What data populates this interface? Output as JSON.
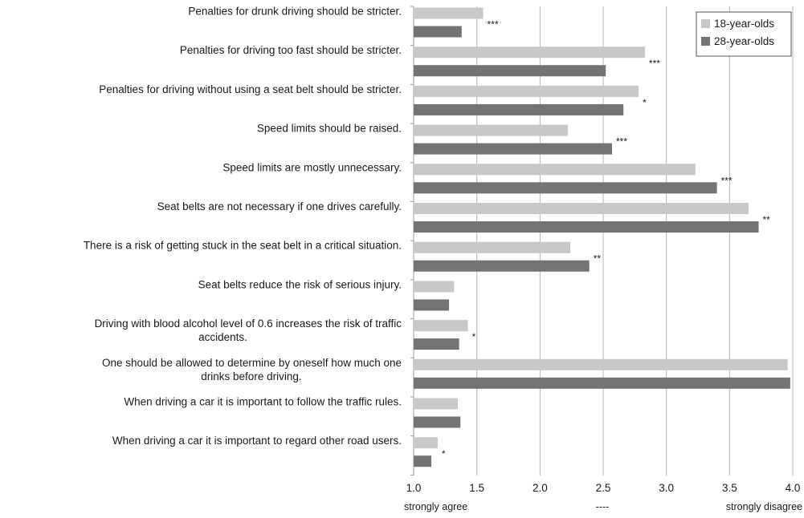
{
  "chart_data": {
    "type": "bar",
    "orientation": "horizontal",
    "categories": [
      [
        "Penalties for drunk driving should be stricter."
      ],
      [
        "Penalties for driving too fast should be stricter."
      ],
      [
        "Penalties for driving without using a seat belt should be stricter."
      ],
      [
        "Speed limits should be raised."
      ],
      [
        "Speed limits are mostly unnecessary."
      ],
      [
        "Seat belts are not necessary if one drives carefully."
      ],
      [
        "There is a risk of getting stuck in the seat belt in a critical situation."
      ],
      [
        "Seat belts reduce the risk of serious injury."
      ],
      [
        "Driving with blood alcohol level of 0.6 increases the risk of traffic",
        "accidents."
      ],
      [
        "One should be allowed to determine by oneself how much one",
        "drinks before driving."
      ],
      [
        "When driving a car it is important to follow the traffic rules."
      ],
      [
        "When driving a car it is important to regard other road users."
      ]
    ],
    "series": [
      {
        "name": "18-year-olds",
        "color": "#c8c8c8",
        "values": [
          1.55,
          2.83,
          2.78,
          2.22,
          3.23,
          3.65,
          2.24,
          1.32,
          1.43,
          3.96,
          1.35,
          1.19
        ]
      },
      {
        "name": "28-year-olds",
        "color": "#737373",
        "values": [
          1.38,
          2.52,
          2.66,
          2.57,
          3.4,
          3.73,
          2.39,
          1.28,
          1.36,
          3.98,
          1.37,
          1.14
        ]
      }
    ],
    "significance": [
      "***",
      "***",
      "*",
      "***",
      "***",
      "**",
      "**",
      "",
      "*",
      "",
      "",
      "*"
    ],
    "xlim": [
      1.0,
      4.0
    ],
    "xticks": [
      "1.0",
      "1.5",
      "2.0",
      "2.5",
      "3.0",
      "3.5",
      "4.0"
    ],
    "xtick_values": [
      1.0,
      1.5,
      2.0,
      2.5,
      3.0,
      3.5,
      4.0
    ],
    "x_sublabels": {
      "left": "strongly agree",
      "center": "----",
      "right": "strongly disagree"
    },
    "grid": "vertical",
    "legend_position": "top-right"
  }
}
